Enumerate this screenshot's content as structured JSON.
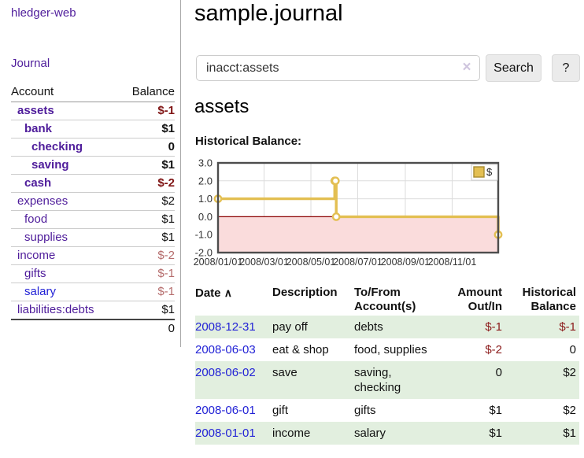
{
  "app": {
    "title": "hledger-web"
  },
  "sidebar": {
    "journal_link": "Journal",
    "table": {
      "account_header": "Account",
      "balance_header": "Balance",
      "rows": [
        {
          "name": "assets",
          "level": 1,
          "bold": true,
          "balance": "$-1"
        },
        {
          "name": "bank",
          "level": 2,
          "bold": true,
          "balance": "$1"
        },
        {
          "name": "checking",
          "level": 3,
          "bold": true,
          "balance": "0"
        },
        {
          "name": "saving",
          "level": 3,
          "bold": true,
          "balance": "$1"
        },
        {
          "name": "cash",
          "level": 2,
          "bold": true,
          "balance": "$-2"
        },
        {
          "name": "expenses",
          "level": 1,
          "bold": false,
          "balance": "$2"
        },
        {
          "name": "food",
          "level": 2,
          "bold": false,
          "balance": "$1"
        },
        {
          "name": "supplies",
          "level": 2,
          "bold": false,
          "balance": "$1"
        },
        {
          "name": "income",
          "level": 1,
          "bold": false,
          "balance": "$-2"
        },
        {
          "name": "gifts",
          "level": 2,
          "bold": false,
          "balance": "$-1"
        },
        {
          "name": "salary",
          "level": 2,
          "bold": false,
          "balance": "$-1",
          "link_color": "blue"
        },
        {
          "name": "liabilities:debts",
          "level": 1,
          "bold": false,
          "balance": "$1"
        }
      ],
      "total": "0"
    }
  },
  "main": {
    "title": "sample.journal",
    "account_title": "assets",
    "chart_label": "Historical Balance:"
  },
  "search": {
    "value": "inacct:assets",
    "clear_icon": "×",
    "button": "Search",
    "help_button": "?"
  },
  "chart_data": {
    "type": "line",
    "title": "Historical Balance",
    "step": true,
    "series": [
      {
        "name": "$",
        "color": "#e3bf52",
        "points": [
          [
            "2008-01-01",
            1.0
          ],
          [
            "2008-06-01",
            2.0
          ],
          [
            "2008-06-02",
            2.0
          ],
          [
            "2008-06-03",
            0.0
          ],
          [
            "2008-12-31",
            -1.0
          ]
        ]
      }
    ],
    "xlim": [
      "2008-01-01",
      "2008-12-31"
    ],
    "ylim": [
      -2.0,
      3.0
    ],
    "x_ticks": [
      "2008/01/01",
      "2008/03/01",
      "2008/05/01",
      "2008/07/01",
      "2008/09/01",
      "2008/11/01"
    ],
    "y_ticks": [
      "3.0",
      "2.0",
      "1.0",
      "0.0",
      "-1.0",
      "-2.0"
    ],
    "legend": {
      "label": "$",
      "position": "top-right"
    },
    "grid": true,
    "negative_region_color": "#fadcdc",
    "zero_line_color": "#8b0000",
    "line_color": "#e3bf52",
    "marker": "open-circle"
  },
  "transactions": {
    "headers": {
      "date": "Date",
      "sort_icon": "∧",
      "description": "Description",
      "tofrom": "To/From Account(s)",
      "amount": "Amount Out/In",
      "balance": "Historical Balance"
    },
    "rows": [
      {
        "date": "2008-12-31",
        "description": "pay off",
        "accounts": "debts",
        "amount": "$-1",
        "balance": "$-1"
      },
      {
        "date": "2008-06-03",
        "description": "eat & shop",
        "accounts": "food, supplies",
        "amount": "$-2",
        "balance": "0"
      },
      {
        "date": "2008-06-02",
        "description": "save",
        "accounts": "saving, checking",
        "amount": "0",
        "balance": "$2"
      },
      {
        "date": "2008-06-01",
        "description": "gift",
        "accounts": "gifts",
        "amount": "$1",
        "balance": "$2"
      },
      {
        "date": "2008-01-01",
        "description": "income",
        "accounts": "salary",
        "amount": "$1",
        "balance": "$1"
      }
    ]
  }
}
